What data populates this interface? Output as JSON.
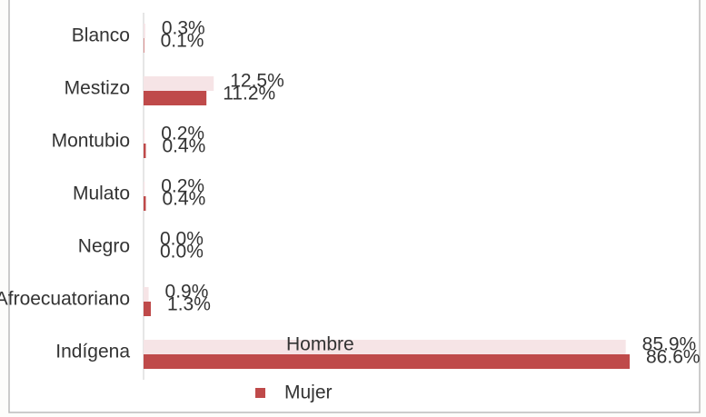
{
  "chart_data": {
    "type": "bar",
    "orientation": "horizontal",
    "categories": [
      "Blanco",
      "Mestizo",
      "Montubio",
      "Mulato",
      "Negro",
      "Afroecuatoriano",
      "Indígena"
    ],
    "series": [
      {
        "name": "Hombre",
        "color": "#f6e4e6",
        "values": [
          0.3,
          12.5,
          0.2,
          0.2,
          0.0,
          0.9,
          85.9
        ],
        "value_labels": [
          "0.3%",
          "12.5%",
          "0.2%",
          "0.2%",
          "0.0%",
          "0.9%",
          "85.9%"
        ]
      },
      {
        "name": "Mujer",
        "color": "#bf4a4a",
        "values": [
          0.1,
          11.2,
          0.4,
          0.4,
          0.0,
          1.3,
          86.6
        ],
        "value_labels": [
          "0.1%",
          "11.2%",
          "0.4%",
          "0.4%",
          "0.0%",
          "1.3%",
          "86.6%"
        ]
      }
    ]
  }
}
